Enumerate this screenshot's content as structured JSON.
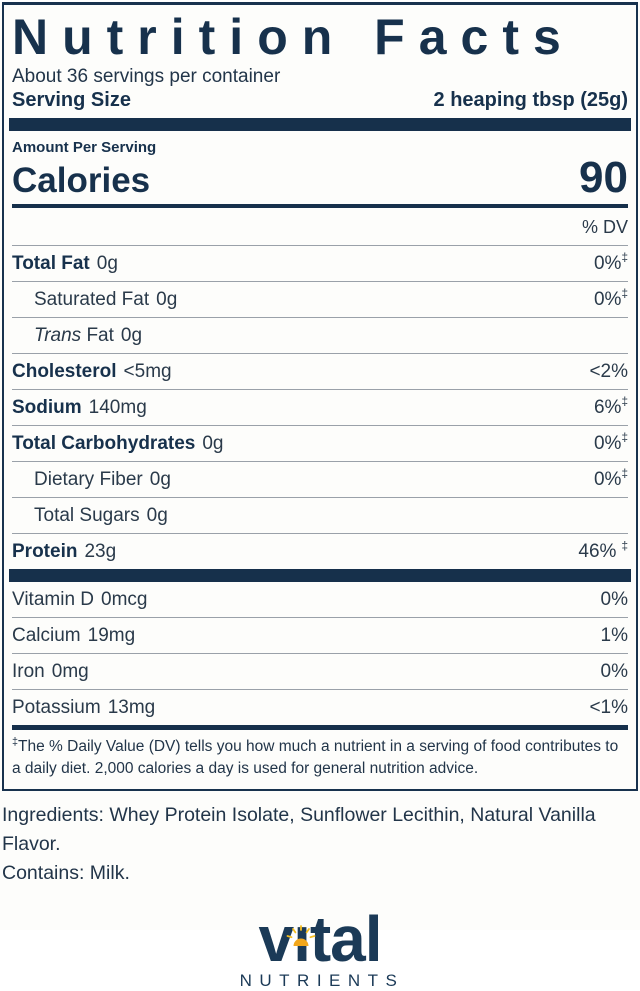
{
  "colors": {
    "navy": "#17314c",
    "text": "#2a3a4a",
    "rule_gray": "#9aa1a9",
    "sun_orange": "#f2a71c",
    "sun_rays": "#f5bd1f"
  },
  "label": {
    "title": "Nutrition Facts",
    "servings_per_container": "About 36 servings per container",
    "serving_size_label": "Serving Size",
    "serving_size_value": "2 heaping tbsp (25g)",
    "amount_per_serving": "Amount Per Serving",
    "calories_label": "Calories",
    "calories_value": "90",
    "dv_header": "% DV",
    "rows": [
      {
        "bold": true,
        "name": "Total Fat",
        "amount": "0g",
        "dv": "0%",
        "sup": "‡"
      },
      {
        "indent": true,
        "name": "Saturated Fat",
        "amount": "0g",
        "dv": "0%",
        "sup": "‡"
      },
      {
        "indent": true,
        "name_italic": "Trans",
        "name": "Fat",
        "amount": "0g",
        "dv": "",
        "sup": ""
      },
      {
        "bold": true,
        "name": "Cholesterol",
        "amount": "<5mg",
        "dv": "<2%",
        "sup": ""
      },
      {
        "bold": true,
        "name": "Sodium",
        "amount": "140mg",
        "dv": "6%",
        "sup": "‡"
      },
      {
        "bold": true,
        "name": "Total Carbohydrates",
        "amount": "0g",
        "dv": "0%",
        "sup": "‡"
      },
      {
        "indent": true,
        "name": "Dietary Fiber",
        "amount": "0g",
        "dv": "0%",
        "sup": "‡"
      },
      {
        "indent": true,
        "name": "Total Sugars",
        "amount": "0g",
        "dv": "",
        "sup": ""
      },
      {
        "bold": true,
        "name": "Protein",
        "amount": "23g",
        "dv": "46%",
        "sup": "‡",
        "sup_space": true
      }
    ],
    "vitamin_rows": [
      {
        "name": "Vitamin D",
        "amount": "0mcg",
        "dv": "0%",
        "sup": ""
      },
      {
        "name": "Calcium",
        "amount": "19mg",
        "dv": "1%",
        "sup": ""
      },
      {
        "name": "Iron",
        "amount": "0mg",
        "dv": "0%",
        "sup": ""
      },
      {
        "name": "Potassium",
        "amount": "13mg",
        "dv": "<1%",
        "sup": ""
      }
    ],
    "footnote_marker": "‡",
    "footnote_text": "The % Daily Value (DV) tells you how much a nutrient in a serving of food contributes to a daily diet. 2,000 calories a day is used for general nutrition advice."
  },
  "ingredients_line": "Ingredients: Whey Protein Isolate, Sunflower Lecithin, Natural Vanilla Flavor.",
  "contains_line": "Contains: Milk.",
  "logo": {
    "wordmark_pre": "v",
    "wordmark_i": "ı",
    "wordmark_post": "tal",
    "wordmark_full": "vital",
    "subtext": "NUTRIENTS"
  }
}
